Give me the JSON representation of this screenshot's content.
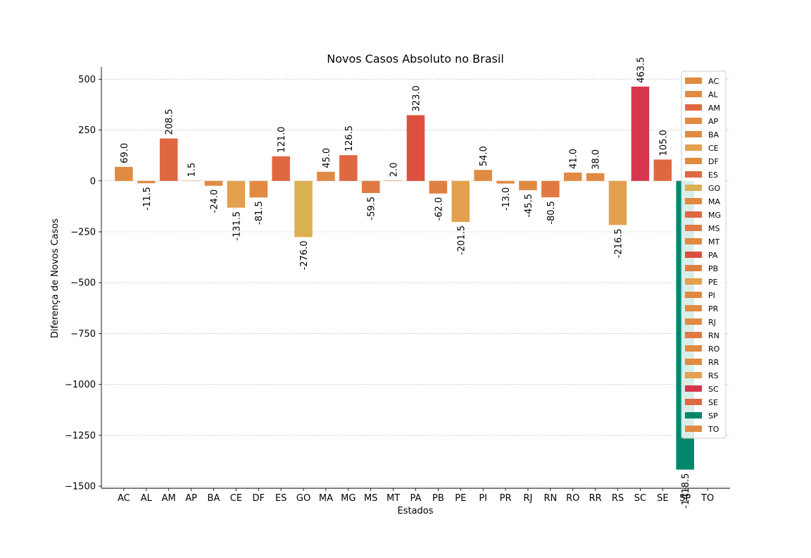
{
  "chart_data": {
    "type": "bar",
    "title": "Novos Casos Absoluto no Brasil",
    "xlabel": "Estados",
    "ylabel": "Diferença de Novos Casos",
    "ylim": [
      -1510,
      560
    ],
    "yticks": [
      500,
      250,
      0,
      -250,
      -500,
      -750,
      -1000,
      -1250,
      -1500
    ],
    "ytick_labels": [
      "500",
      "250",
      "0",
      "−250",
      "−500",
      "−750",
      "−1000",
      "−1250",
      "−1500"
    ],
    "grid": true,
    "legend": "right",
    "categories": [
      "AC",
      "AL",
      "AM",
      "AP",
      "BA",
      "CE",
      "DF",
      "ES",
      "GO",
      "MA",
      "MG",
      "MS",
      "MT",
      "PA",
      "PB",
      "PE",
      "PI",
      "PR",
      "RJ",
      "RN",
      "RO",
      "RR",
      "RS",
      "SC",
      "SE",
      "SP",
      "TO"
    ],
    "values": [
      69.0,
      -11.5,
      208.5,
      1.5,
      -24.0,
      -131.5,
      -81.5,
      121.0,
      -276.0,
      45.0,
      126.5,
      -59.5,
      2.0,
      323.0,
      -62.0,
      -201.5,
      54.0,
      -13.0,
      -45.5,
      -80.5,
      41.0,
      38.0,
      -216.5,
      463.5,
      105.0,
      -1418.5,
      0.0
    ],
    "value_labels": [
      "69.0",
      "-11.5",
      "208.5",
      "1.5",
      "-24.0",
      "-131.5",
      "-81.5",
      "121.0",
      "-276.0",
      "45.0",
      "126.5",
      "-59.5",
      "2.0",
      "323.0",
      "-62.0",
      "-201.5",
      "54.0",
      "-13.0",
      "-45.5",
      "-80.5",
      "41.0",
      "38.0",
      "-216.5",
      "463.5",
      "105.0",
      "-1418.5",
      ""
    ],
    "colors": [
      "#e08a42",
      "#e08a42",
      "#e06840",
      "#e08a42",
      "#e08a42",
      "#e3a04e",
      "#e08a42",
      "#e06840",
      "#dbb050",
      "#e08a42",
      "#e06840",
      "#e07a42",
      "#e08a42",
      "#dd5040",
      "#e08040",
      "#e3a04e",
      "#e08a42",
      "#e08a42",
      "#e08a42",
      "#e07a42",
      "#e08a42",
      "#e08a42",
      "#e3a04e",
      "#d6374e",
      "#e06840",
      "#00876b",
      "#e08a42"
    ]
  }
}
